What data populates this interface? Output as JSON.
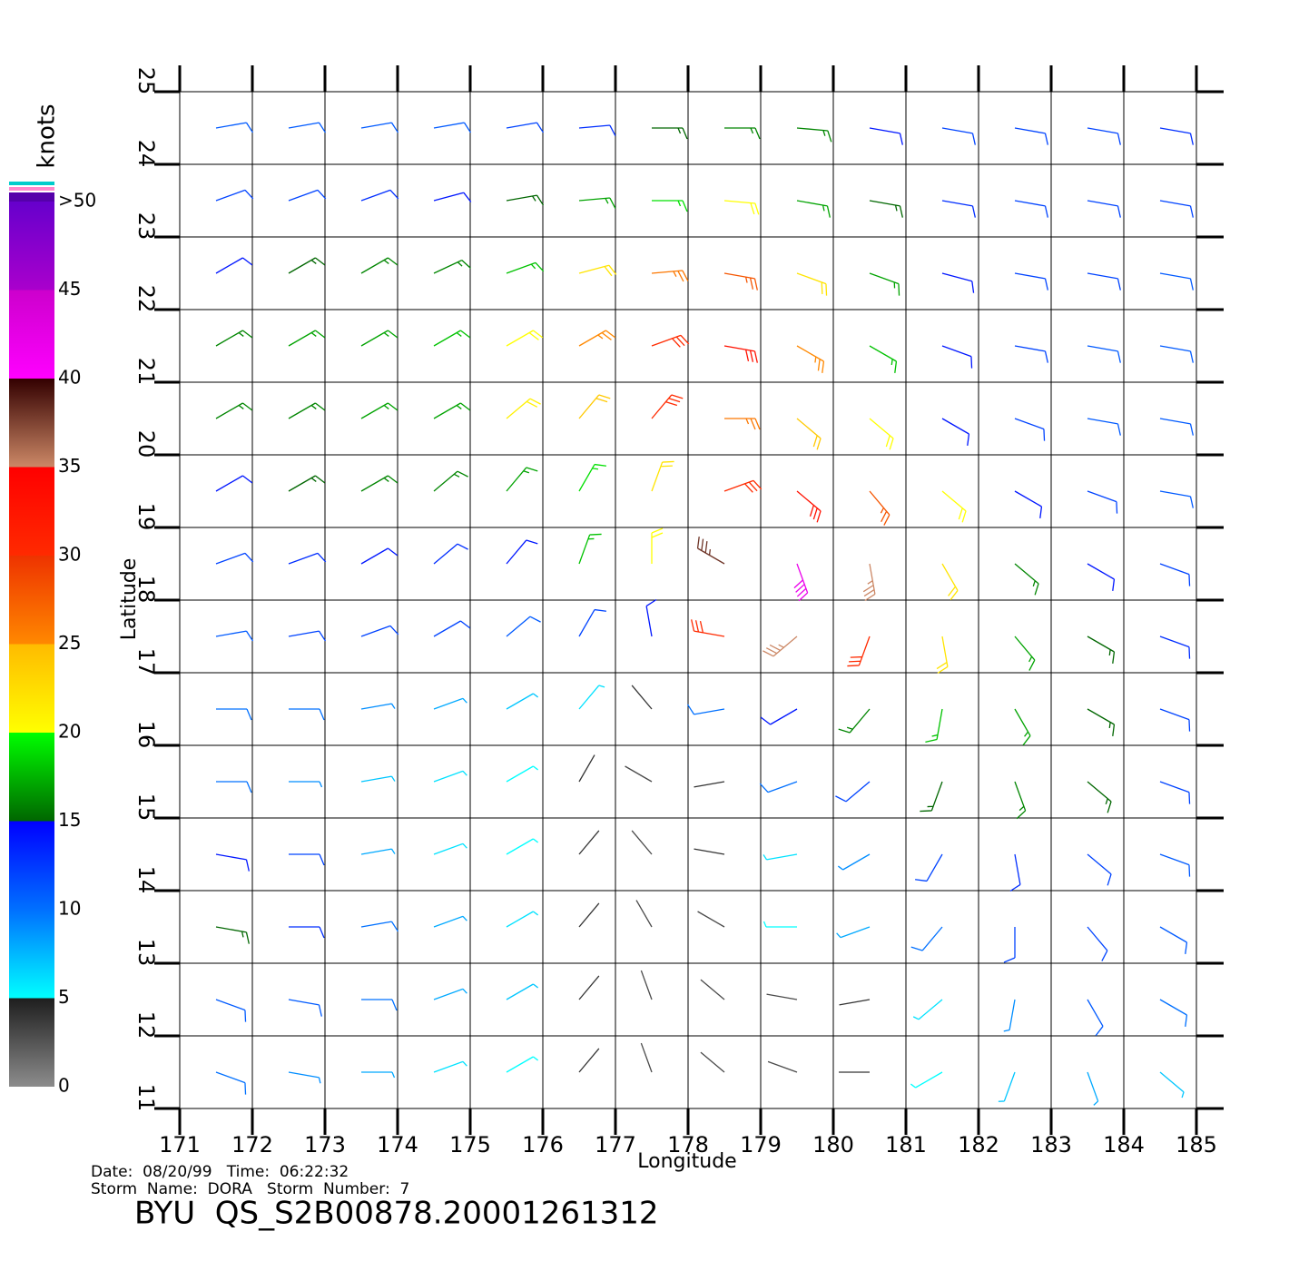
{
  "chart_data": {
    "type": "wind-barb",
    "x_label": "Longitude",
    "y_label": "Latitude",
    "xlim": [
      171,
      185
    ],
    "ylim": [
      11,
      25
    ],
    "xticks": [
      171,
      172,
      173,
      174,
      175,
      176,
      177,
      178,
      179,
      180,
      181,
      182,
      183,
      184,
      185
    ],
    "yticks": [
      11,
      12,
      13,
      14,
      15,
      16,
      17,
      18,
      19,
      20,
      21,
      22,
      23,
      24,
      25
    ],
    "grid": true,
    "lons": [
      171.5,
      172.5,
      173.5,
      174.5,
      175.5,
      176.5,
      177.5,
      178.5,
      179.5,
      180.5,
      181.5,
      182.5,
      183.5,
      184.5
    ],
    "lats": [
      24.5,
      23.5,
      22.5,
      21.5,
      20.5,
      19.5,
      18.5,
      17.5,
      16.5,
      15.5,
      14.5,
      13.5,
      12.5,
      11.5
    ],
    "speed": [
      [
        11,
        11,
        11,
        11,
        12,
        13,
        15,
        16,
        16,
        14,
        12,
        12,
        12,
        13
      ],
      [
        12,
        12,
        13,
        14,
        15,
        17,
        19,
        20,
        17,
        15,
        13,
        12,
        12,
        12
      ],
      [
        14,
        15,
        16,
        16,
        18,
        22,
        26,
        28,
        22,
        17,
        14,
        12,
        12,
        11
      ],
      [
        16,
        17,
        17,
        18,
        20,
        25,
        30,
        33,
        25,
        18,
        14,
        12,
        11,
        11
      ],
      [
        16,
        16,
        17,
        17,
        21,
        24,
        30,
        26,
        24,
        20,
        14,
        12,
        11,
        11
      ],
      [
        14,
        15,
        16,
        16,
        17,
        19,
        22,
        30,
        33,
        28,
        20,
        14,
        12,
        11
      ],
      [
        12,
        13,
        14,
        13,
        14,
        18,
        20,
        38,
        42,
        35,
        22,
        16,
        14,
        12
      ],
      [
        11,
        12,
        12,
        12,
        11,
        12,
        14,
        30,
        35,
        30,
        22,
        17,
        15,
        13
      ],
      [
        10,
        10,
        9,
        8,
        7,
        6,
        4,
        10,
        14,
        16,
        18,
        17,
        15,
        12
      ],
      [
        10,
        9,
        7,
        6,
        5,
        4,
        3,
        4,
        10,
        12,
        15,
        16,
        15,
        12
      ],
      [
        14,
        12,
        8,
        6,
        5,
        4,
        3,
        4,
        6,
        9,
        12,
        13,
        12,
        11
      ],
      [
        15,
        13,
        10,
        8,
        6,
        4,
        3,
        3,
        5,
        8,
        10,
        12,
        12,
        11
      ],
      [
        11,
        11,
        10,
        8,
        7,
        4,
        3,
        3,
        3,
        4,
        6,
        9,
        11,
        10
      ],
      [
        10,
        9,
        8,
        6,
        5,
        4,
        3,
        3,
        3,
        4,
        5,
        7,
        8,
        7
      ]
    ],
    "direction": [
      [
        80,
        80,
        80,
        80,
        80,
        85,
        90,
        90,
        95,
        100,
        100,
        100,
        100,
        100
      ],
      [
        70,
        70,
        70,
        75,
        80,
        85,
        90,
        95,
        100,
        100,
        100,
        100,
        100,
        100
      ],
      [
        60,
        60,
        60,
        65,
        70,
        75,
        85,
        100,
        110,
        110,
        105,
        100,
        100,
        100
      ],
      [
        60,
        60,
        60,
        60,
        60,
        60,
        70,
        100,
        120,
        120,
        110,
        100,
        100,
        100
      ],
      [
        60,
        60,
        60,
        60,
        50,
        40,
        40,
        90,
        130,
        130,
        120,
        110,
        100,
        100
      ],
      [
        60,
        60,
        60,
        50,
        40,
        30,
        20,
        70,
        130,
        140,
        130,
        120,
        110,
        100
      ],
      [
        70,
        70,
        60,
        50,
        40,
        20,
        0,
        300,
        160,
        170,
        150,
        130,
        120,
        110
      ],
      [
        80,
        80,
        70,
        60,
        50,
        30,
        350,
        280,
        230,
        200,
        170,
        140,
        120,
        110
      ],
      [
        90,
        90,
        80,
        70,
        60,
        40,
        320,
        260,
        240,
        220,
        190,
        150,
        120,
        110
      ],
      [
        90,
        90,
        80,
        70,
        60,
        30,
        300,
        260,
        250,
        230,
        200,
        160,
        130,
        110
      ],
      [
        100,
        90,
        80,
        70,
        60,
        40,
        320,
        280,
        260,
        240,
        210,
        170,
        130,
        110
      ],
      [
        100,
        90,
        80,
        70,
        60,
        40,
        330,
        300,
        270,
        250,
        220,
        180,
        140,
        120
      ],
      [
        110,
        100,
        90,
        70,
        60,
        40,
        340,
        310,
        280,
        260,
        230,
        190,
        150,
        120
      ],
      [
        110,
        100,
        90,
        70,
        60,
        40,
        340,
        310,
        290,
        270,
        240,
        200,
        160,
        130
      ]
    ],
    "colorbar": {
      "title": "knots",
      "lim": [
        0,
        50
      ],
      "ticks": [
        0,
        5,
        10,
        15,
        20,
        25,
        30,
        35,
        40,
        45,
        {
          "value": 50,
          "label": ">50"
        }
      ],
      "band_colors": [
        [
          "#8c8c8c",
          "#1e1e1e"
        ],
        [
          "#00ffff",
          "#0070ff"
        ],
        [
          "#0070ff",
          "#0000ff"
        ],
        [
          "#006600",
          "#00ff00"
        ],
        [
          "#ffff00",
          "#ffbb00"
        ],
        [
          "#ff8800",
          "#ee3300"
        ],
        [
          "#ff2a00",
          "#ff0000"
        ],
        [
          "#cc8866",
          "#330000"
        ],
        [
          "#ff00ff",
          "#cc00cc"
        ],
        [
          "#aa00cc",
          "#6600cc"
        ]
      ]
    },
    "notes": [
      "Date:  08/20/99   Time:  06:22:32",
      "Storm  Name:  DORA   Storm  Number:  7"
    ],
    "footer": "BYU  QS_S2B00878.20001261312"
  }
}
